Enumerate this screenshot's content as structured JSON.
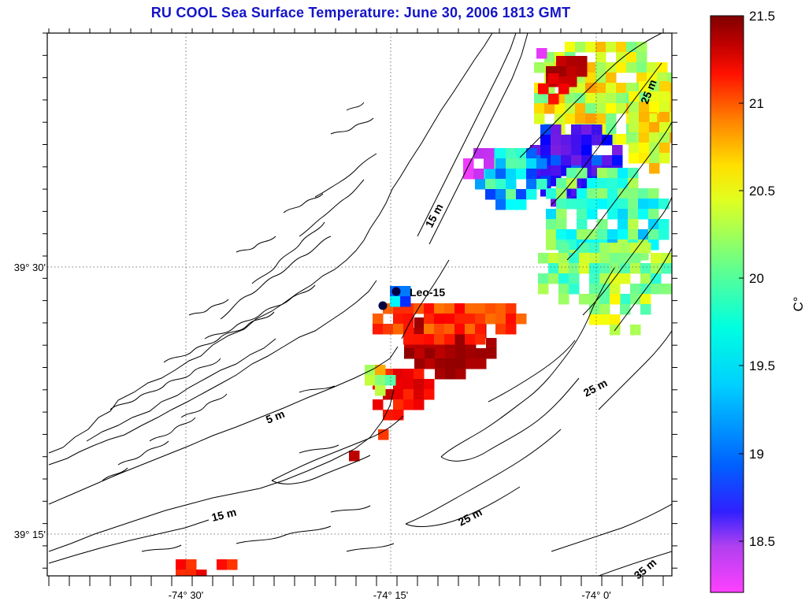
{
  "title": "RU COOL  Sea Surface Temperature:  June 30, 2006 1813 GMT",
  "axes": {
    "x_ticks": [
      "-74° 30'",
      "-74° 15'",
      "-74° 0'"
    ],
    "y_ticks": [
      "39° 30'",
      "39° 15'"
    ]
  },
  "contour_labels": [
    "5 m",
    "15 m",
    "15 m",
    "25 m",
    "25 m",
    "25 m",
    "35 m"
  ],
  "stations": {
    "leo15": "Leo-15"
  },
  "colorbar": {
    "unit": "C°",
    "ticks": [
      "21.5",
      "21",
      "20.5",
      "20",
      "19.5",
      "19",
      "18.5"
    ],
    "range": [
      18.2,
      21.5
    ]
  },
  "colors": {
    "title": "#1414c8",
    "colormap": [
      "#ff40ff",
      "#8020e0",
      "#0000ff",
      "#00ffff",
      "#80ff80",
      "#ffff00",
      "#ff8000",
      "#ff0000",
      "#800000"
    ]
  }
}
